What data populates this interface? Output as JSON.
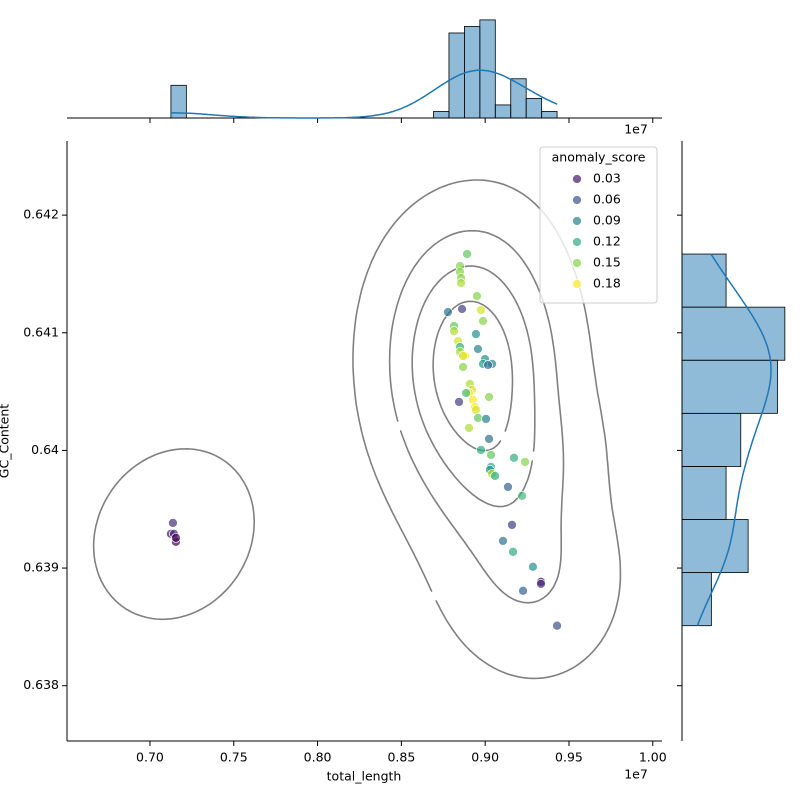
{
  "chart_data": {
    "type": "scatter",
    "x_label": "total_length",
    "y_label": "GC_Content",
    "x_offset_label": "1e7",
    "colormap": "viridis",
    "kde": true,
    "marginal": "hist",
    "x": [
      0.7137,
      0.7125,
      0.7143,
      0.7155,
      0.7155,
      0.8892,
      0.885,
      0.885,
      0.8856,
      0.8856,
      0.8951,
      0.8862,
      0.8778,
      0.8975,
      0.8814,
      0.8987,
      0.8814,
      0.8945,
      0.8838,
      0.885,
      0.8957,
      0.885,
      0.888,
      0.8868,
      0.8999,
      0.8987,
      0.9041,
      0.9017,
      0.8868,
      0.8909,
      0.8921,
      0.8903,
      0.9023,
      0.8886,
      0.8927,
      0.8844,
      0.8939,
      0.8945,
      0.8957,
      0.9005,
      0.8903,
      0.9023,
      0.8975,
      0.9035,
      0.9172,
      0.9238,
      0.9035,
      0.9029,
      0.9041,
      0.9059,
      0.9136,
      0.922,
      0.916,
      0.9106,
      0.9166,
      0.9285,
      0.9333,
      0.9333,
      0.9226,
      0.9429
    ],
    "y": [
      0.639384,
      0.639291,
      0.639291,
      0.639223,
      0.639257,
      0.641669,
      0.641567,
      0.641516,
      0.641465,
      0.641423,
      0.641312,
      0.641202,
      0.641176,
      0.641193,
      0.641057,
      0.6411,
      0.641015,
      0.640989,
      0.64093,
      0.640879,
      0.640862,
      0.640837,
      0.640803,
      0.640803,
      0.640777,
      0.640735,
      0.640735,
      0.640726,
      0.640709,
      0.640565,
      0.640514,
      0.640488,
      0.640454,
      0.640488,
      0.640429,
      0.640412,
      0.640369,
      0.640344,
      0.640276,
      0.640268,
      0.640191,
      0.640098,
      0.640004,
      0.639962,
      0.639937,
      0.639902,
      0.63986,
      0.639834,
      0.6398,
      0.639783,
      0.63969,
      0.639614,
      0.639367,
      0.639231,
      0.639138,
      0.639011,
      0.638883,
      0.638866,
      0.638807,
      0.63851
    ],
    "hue": [
      0.04,
      0.03,
      0.04,
      0.02,
      0.02,
      0.14,
      0.15,
      0.15,
      0.15,
      0.16,
      0.15,
      0.05,
      0.08,
      0.17,
      0.14,
      0.15,
      0.16,
      0.1,
      0.17,
      0.12,
      0.09,
      0.16,
      0.18,
      0.17,
      0.1,
      0.11,
      0.09,
      0.08,
      0.15,
      0.16,
      0.17,
      0.18,
      0.15,
      0.13,
      0.18,
      0.05,
      0.18,
      0.17,
      0.14,
      0.09,
      0.16,
      0.08,
      0.12,
      0.14,
      0.12,
      0.15,
      0.12,
      0.1,
      0.16,
      0.12,
      0.07,
      0.13,
      0.05,
      0.08,
      0.12,
      0.1,
      0.03,
      0.04,
      0.07,
      0.06
    ],
    "xlim": [
      0.6505,
      1.0055
    ],
    "ylim": [
      0.63753,
      0.64263
    ],
    "xticks": [
      {
        "value": 0.7,
        "label": "0.70"
      },
      0.75,
      {
        "value": 0.8,
        "label": "0.80"
      },
      0.85,
      {
        "value": 0.9,
        "label": "0.90"
      },
      0.95,
      {
        "value": 1.0,
        "label": "1.00"
      }
    ],
    "yticks": [
      0.638,
      0.639,
      0.64,
      0.641,
      0.642
    ],
    "yticks_labels": null,
    "legend": {
      "title": "anomaly_score",
      "corner": "upper right",
      "entries": [
        0.03,
        0.06,
        0.09,
        0.12,
        0.15,
        0.18
      ]
    }
  }
}
